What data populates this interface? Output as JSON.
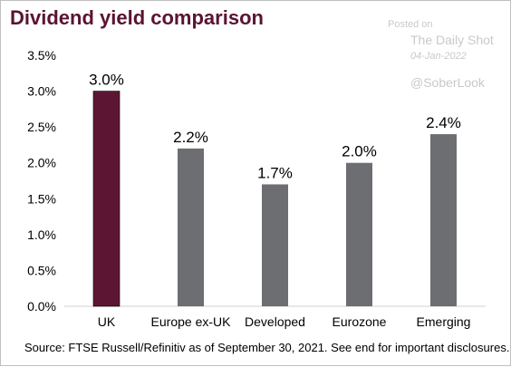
{
  "title": "Dividend yield comparison",
  "source": "Source: FTSE Russell/Refinitiv as of September 30, 2021. See end for important disclosures.",
  "watermark": {
    "posted_on": "Posted on",
    "publisher": "The Daily Shot",
    "date": "04-Jan-2022",
    "handle": "@SoberLook"
  },
  "colors": {
    "highlight": "#5c1633",
    "bar": "#6d6e71",
    "title": "#5a1432"
  },
  "chart_data": {
    "type": "bar",
    "categories": [
      "UK",
      "Europe ex-UK",
      "Developed",
      "Eurozone",
      "Emerging"
    ],
    "values": [
      3.0,
      2.2,
      1.7,
      2.0,
      2.4
    ],
    "data_labels": [
      "3.0%",
      "2.2%",
      "1.7%",
      "2.0%",
      "2.4%"
    ],
    "highlight_index": 0,
    "ylim": [
      0,
      3.5
    ],
    "yticks": [
      0,
      0.5,
      1.0,
      1.5,
      2.0,
      2.5,
      3.0,
      3.5
    ],
    "ytick_labels": [
      "0.0%",
      "0.5%",
      "1.0%",
      "1.5%",
      "2.0%",
      "2.5%",
      "3.0%",
      "3.5%"
    ],
    "grid": false,
    "legend": "none"
  }
}
